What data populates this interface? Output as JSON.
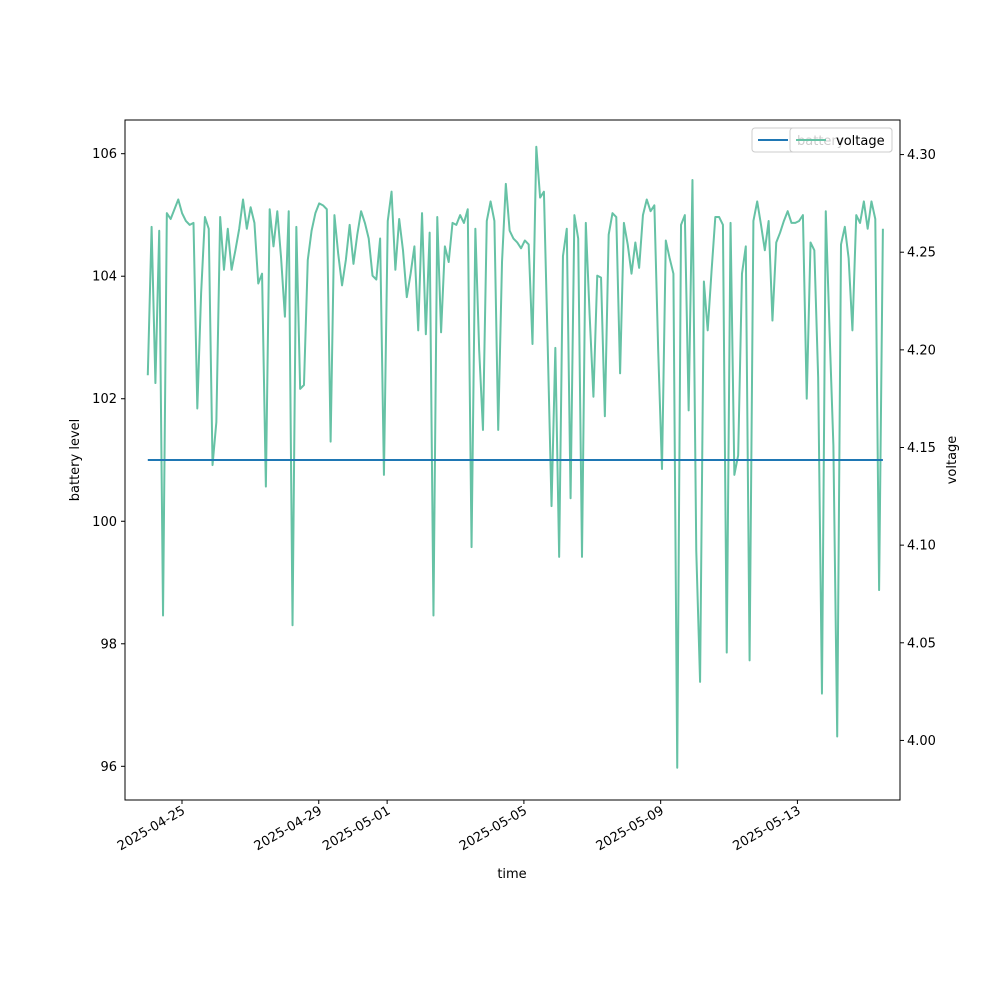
{
  "chart_data": {
    "type": "line",
    "xlabel": "time",
    "x_tick_labels": [
      "2025-04-25",
      "2025-04-29",
      "2025-05-01",
      "2025-05-05",
      "2025-05-09",
      "2025-05-13"
    ],
    "x_tick_dates": [
      "2025-04-25",
      "2025-04-29",
      "2025-05-01",
      "2025-05-05",
      "2025-05-09",
      "2025-05-13"
    ],
    "x_range": [
      "2025-04-23T08:00",
      "2025-05-16T00:00"
    ],
    "y_left": {
      "label": "battery level",
      "range": [
        95.45,
        106.55
      ],
      "ticks": [
        96,
        98,
        100,
        102,
        104,
        106
      ]
    },
    "y_right": {
      "label": "voltage",
      "range": [
        3.9695,
        4.3177
      ],
      "ticks": [
        4.0,
        4.05,
        4.1,
        4.15,
        4.2,
        4.25,
        4.3
      ],
      "tick_labels": [
        "4.00",
        "4.05",
        "4.10",
        "4.15",
        "4.20",
        "4.25",
        "4.30"
      ]
    },
    "grid": false,
    "legend_position": "top-right",
    "series": [
      {
        "name": "battery",
        "axis": "left",
        "color": "#1f77b4",
        "x": [
          "2025-04-24T00:00",
          "2025-05-15T12:00"
        ],
        "values": [
          101.0,
          101.0
        ]
      },
      {
        "name": "voltage",
        "axis": "right",
        "color": "#66c2a5",
        "x_start": "2025-04-24T00:00",
        "x_end": "2025-05-15T12:00",
        "values": [
          4.187,
          4.263,
          4.183,
          4.261,
          4.064,
          4.27,
          4.267,
          4.272,
          4.277,
          4.27,
          4.266,
          4.264,
          4.265,
          4.17,
          4.229,
          4.268,
          4.262,
          4.141,
          4.163,
          4.268,
          4.241,
          4.262,
          4.241,
          4.251,
          4.262,
          4.277,
          4.262,
          4.273,
          4.265,
          4.234,
          4.239,
          4.13,
          4.272,
          4.253,
          4.271,
          4.247,
          4.217,
          4.271,
          4.059,
          4.263,
          4.18,
          4.182,
          4.246,
          4.261,
          4.27,
          4.275,
          4.274,
          4.272,
          4.153,
          4.269,
          4.249,
          4.233,
          4.246,
          4.264,
          4.244,
          4.259,
          4.271,
          4.265,
          4.257,
          4.238,
          4.236,
          4.257,
          4.136,
          4.266,
          4.281,
          4.241,
          4.267,
          4.251,
          4.227,
          4.239,
          4.253,
          4.21,
          4.27,
          4.208,
          4.26,
          4.064,
          4.268,
          4.209,
          4.253,
          4.245,
          4.265,
          4.264,
          4.269,
          4.265,
          4.272,
          4.099,
          4.262,
          4.2,
          4.159,
          4.266,
          4.276,
          4.266,
          4.159,
          4.245,
          4.285,
          4.261,
          4.257,
          4.255,
          4.252,
          4.256,
          4.254,
          4.203,
          4.304,
          4.278,
          4.281,
          4.202,
          4.12,
          4.201,
          4.094,
          4.248,
          4.262,
          4.124,
          4.269,
          4.257,
          4.094,
          4.265,
          4.218,
          4.176,
          4.238,
          4.237,
          4.166,
          4.259,
          4.27,
          4.268,
          4.188,
          4.265,
          4.254,
          4.239,
          4.255,
          4.242,
          4.269,
          4.277,
          4.271,
          4.274,
          4.2,
          4.139,
          4.256,
          4.247,
          4.239,
          3.986,
          4.264,
          4.269,
          4.169,
          4.287,
          4.097,
          4.03,
          4.235,
          4.21,
          4.24,
          4.268,
          4.268,
          4.264,
          4.045,
          4.265,
          4.136,
          4.146,
          4.239,
          4.253,
          4.041,
          4.266,
          4.276,
          4.264,
          4.251,
          4.266,
          4.215,
          4.255,
          4.26,
          4.266,
          4.271,
          4.265,
          4.265,
          4.266,
          4.269,
          4.175,
          4.255,
          4.251,
          4.186,
          4.024,
          4.271,
          4.209,
          4.151,
          4.002,
          4.254,
          4.263,
          4.247,
          4.21,
          4.269,
          4.265,
          4.276,
          4.262,
          4.276,
          4.267,
          4.077,
          4.262
        ]
      }
    ]
  }
}
